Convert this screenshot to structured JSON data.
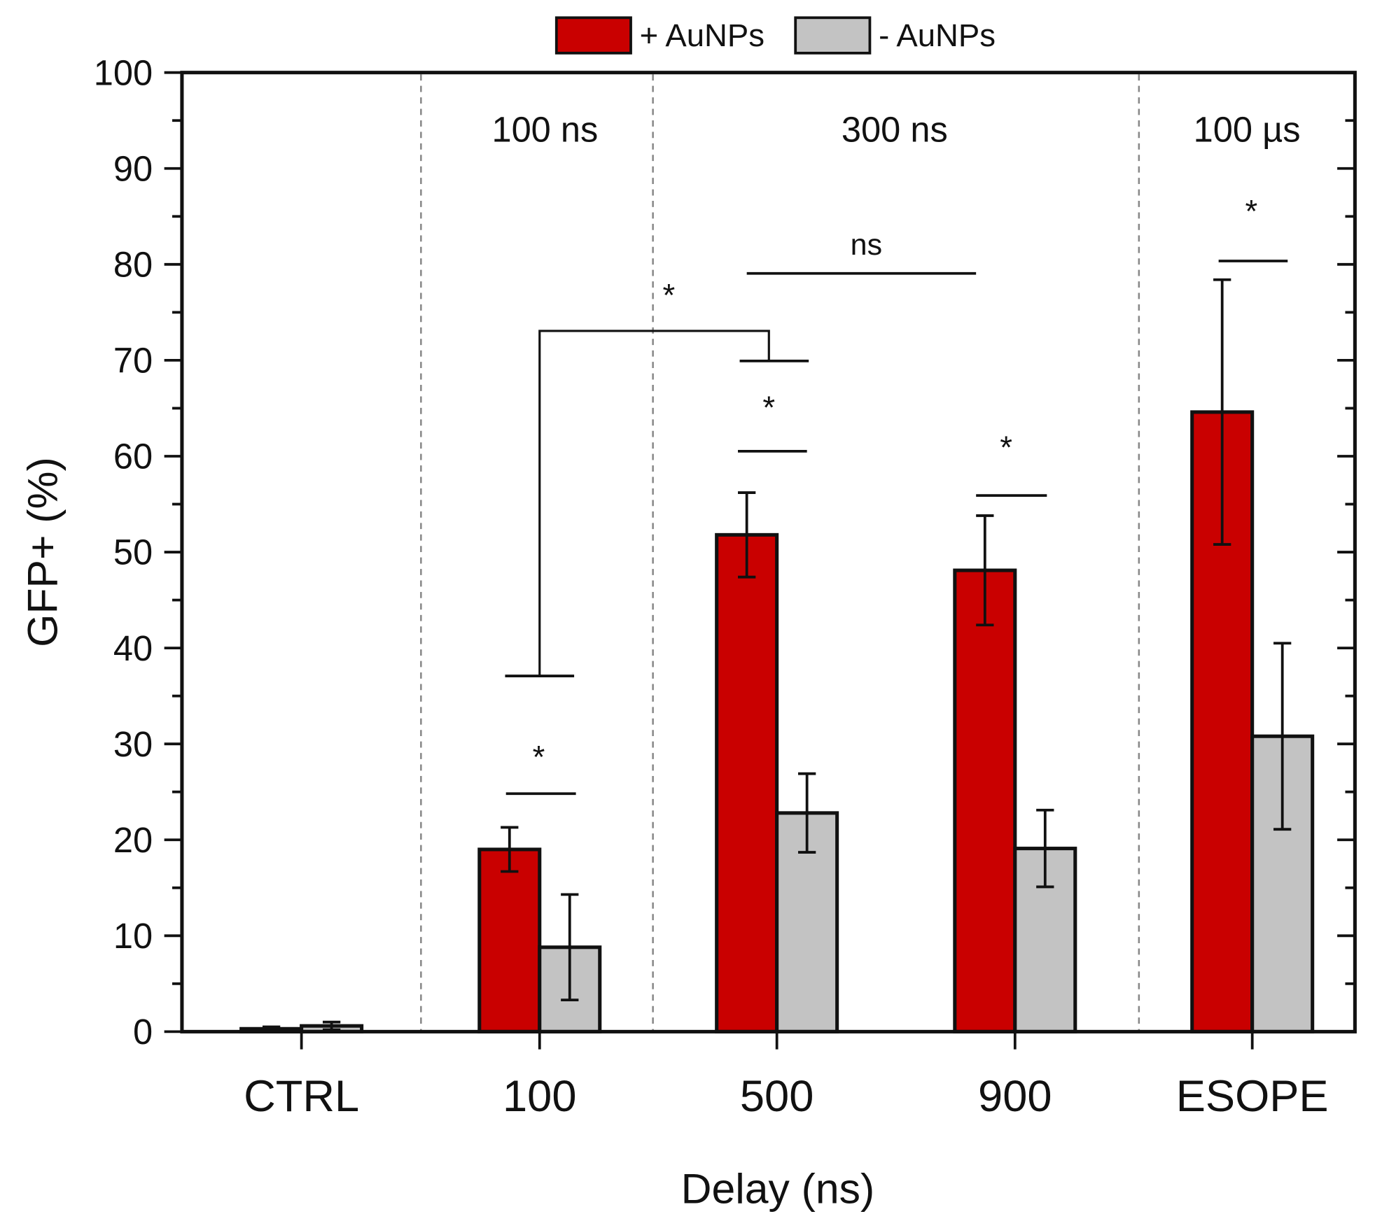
{
  "chart_data": {
    "type": "bar",
    "xlabel": "Delay (ns)",
    "ylabel": "GFP+ (%)",
    "ylim": [
      0,
      100
    ],
    "yticks": [
      "0",
      "10",
      "20",
      "30",
      "40",
      "50",
      "60",
      "70",
      "80",
      "90",
      "100"
    ],
    "categories": [
      "CTRL",
      "100",
      "500",
      "900",
      "ESOPE"
    ],
    "legend_position": "top-center",
    "grid": false,
    "series": [
      {
        "name": "+ AuNPs",
        "color": "#c90000",
        "values": [
          0.3,
          19.0,
          51.8,
          48.1,
          64.6
        ],
        "error": [
          0.2,
          2.3,
          4.4,
          5.7,
          13.8
        ]
      },
      {
        "name": "- AuNPs",
        "color": "#c3c3c3",
        "values": [
          0.6,
          8.8,
          22.8,
          19.1,
          30.8
        ],
        "error": [
          0.4,
          5.5,
          4.1,
          4.0,
          9.7
        ]
      }
    ],
    "group_labels": [
      "100 ns",
      "300 ns",
      "100 µs"
    ],
    "annotations": {
      "star": "*",
      "ns": "ns"
    }
  }
}
